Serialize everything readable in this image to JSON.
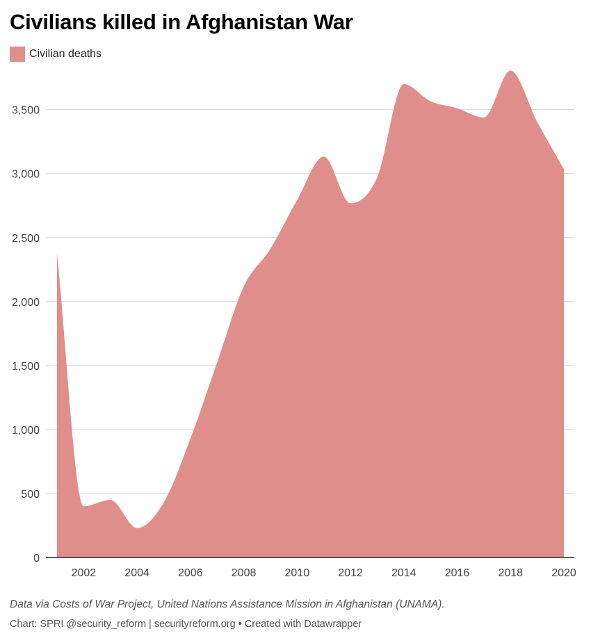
{
  "title": "Civilians killed in Afghanistan War",
  "legend": {
    "label": "Civilian deaths",
    "color": "#e08e8b"
  },
  "footer": {
    "note": "Data via Costs of War Project, United Nations Assistance Mission in Afghanistan (UNAMA).",
    "credit": "Chart: SPRI @security_reform | securityreform.org • Created with Datawrapper"
  },
  "chart_data": {
    "type": "area",
    "title": "Civilians killed in Afghanistan War",
    "series": [
      {
        "name": "Civilian deaths",
        "color": "#e08e8b",
        "x": [
          2001,
          2002,
          2003,
          2004,
          2005,
          2006,
          2007,
          2008,
          2009,
          2010,
          2011,
          2012,
          2013,
          2014,
          2015,
          2016,
          2017,
          2018,
          2019,
          2020
        ],
        "values": [
          2375,
          400,
          450,
          230,
          430,
          929,
          1523,
          2118,
          2412,
          2794,
          3133,
          2768,
          2969,
          3699,
          3565,
          3510,
          3438,
          3804,
          3403,
          3035
        ]
      }
    ],
    "xlim": [
      2001,
      2020
    ],
    "ylim": [
      0,
      3800
    ],
    "x_ticks": [
      2002,
      2004,
      2006,
      2008,
      2010,
      2012,
      2014,
      2016,
      2018,
      2020
    ],
    "y_ticks": [
      0,
      500,
      1000,
      1500,
      2000,
      2500,
      3000,
      3500
    ],
    "y_tick_labels": [
      "0",
      "500",
      "1,000",
      "1,500",
      "2,000",
      "2,500",
      "3,000",
      "3,500"
    ],
    "grid": "horizontal",
    "legend_position": "top-left"
  }
}
